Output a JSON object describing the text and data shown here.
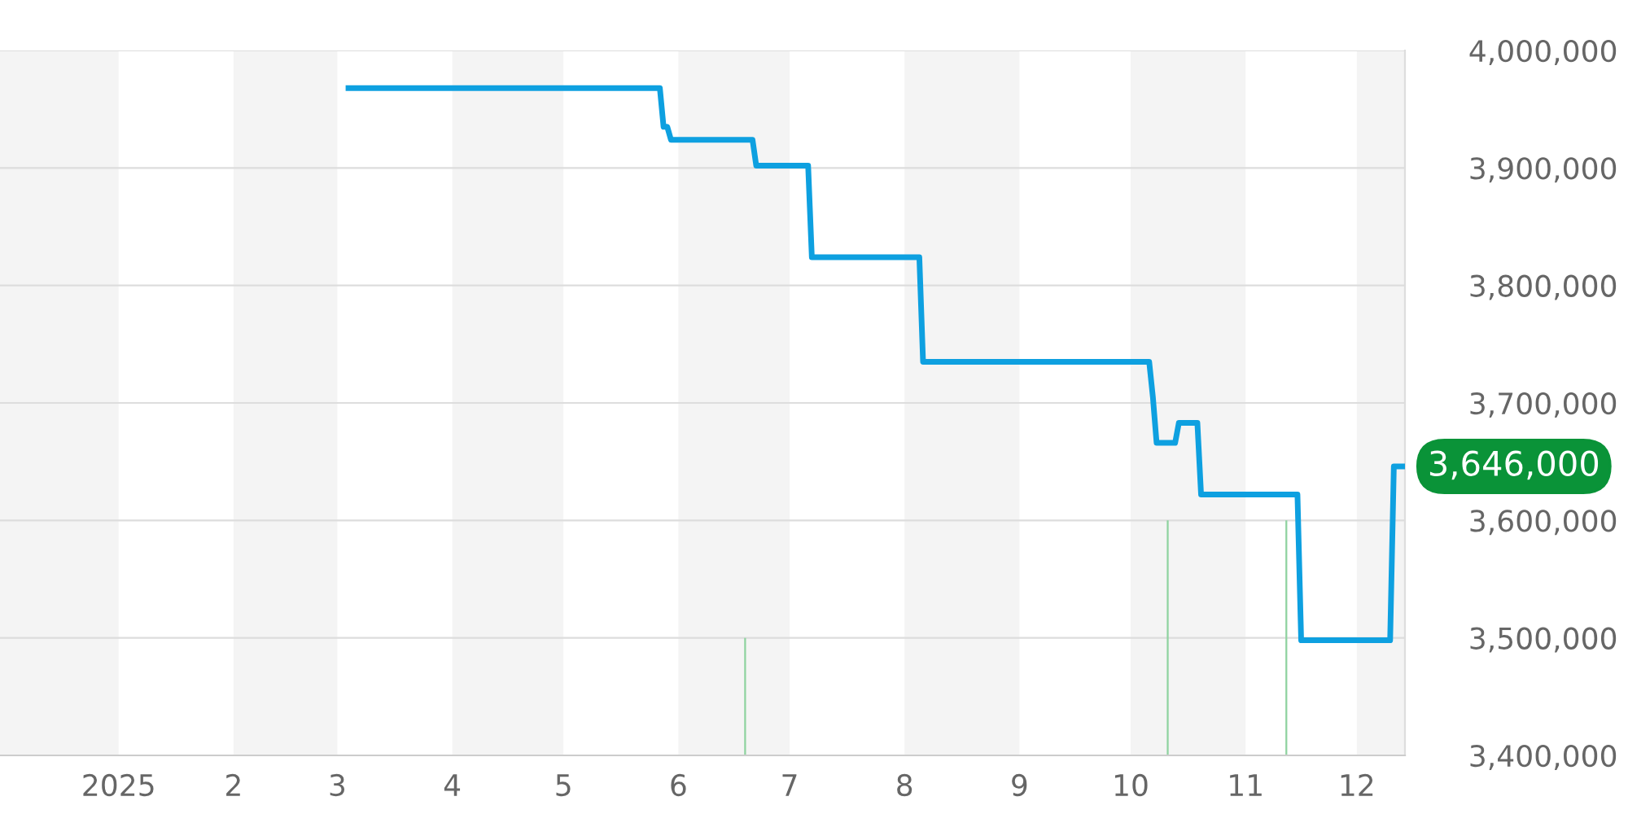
{
  "chart_data": {
    "type": "line",
    "xlim": [
      "2024-11-30",
      "2025-12-14"
    ],
    "xticks": [
      {
        "value": "2025-01-01",
        "label": "2025"
      },
      {
        "value": "2025-02-01",
        "label": "2"
      },
      {
        "value": "2025-03-01",
        "label": "3"
      },
      {
        "value": "2025-04-01",
        "label": "4"
      },
      {
        "value": "2025-05-01",
        "label": "5"
      },
      {
        "value": "2025-06-01",
        "label": "6"
      },
      {
        "value": "2025-07-01",
        "label": "7"
      },
      {
        "value": "2025-08-01",
        "label": "8"
      },
      {
        "value": "2025-09-01",
        "label": "9"
      },
      {
        "value": "2025-10-01",
        "label": "10"
      },
      {
        "value": "2025-11-01",
        "label": "11"
      },
      {
        "value": "2025-12-01",
        "label": "12"
      }
    ],
    "ylim": [
      3400000,
      4000000
    ],
    "yticks": [
      {
        "value": 3400000,
        "label": "3,400,000"
      },
      {
        "value": 3500000,
        "label": "3,500,000"
      },
      {
        "value": 3600000,
        "label": "3,600,000"
      },
      {
        "value": 3700000,
        "label": "3,700,000"
      },
      {
        "value": 3800000,
        "label": "3,800,000"
      },
      {
        "value": 3900000,
        "label": "3,900,000"
      },
      {
        "value": 4000000,
        "label": "4,000,000"
      }
    ],
    "grid": "y",
    "legend": false,
    "marker": "none",
    "line_style": "solid",
    "series": [
      {
        "color": "#0ea0e0",
        "x": [
          "2025-03-04",
          "2025-05-27",
          "2025-05-28",
          "2025-05-29",
          "2025-05-30",
          "2025-06-21",
          "2025-06-22",
          "2025-07-06",
          "2025-07-07",
          "2025-08-05",
          "2025-08-06",
          "2025-10-06",
          "2025-10-07",
          "2025-10-08",
          "2025-10-13",
          "2025-10-14",
          "2025-10-19",
          "2025-10-20",
          "2025-11-15",
          "2025-11-16",
          "2025-12-10",
          "2025-12-11",
          "2025-12-14"
        ],
        "values": [
          3968000,
          3968000,
          3935000,
          3935000,
          3924000,
          3924000,
          3902000,
          3902000,
          3824000,
          3824000,
          3735000,
          3735000,
          3705000,
          3666000,
          3666000,
          3683000,
          3683000,
          3622000,
          3622000,
          3498000,
          3498000,
          3646000,
          3646000
        ]
      },
      {
        "type": "bar",
        "color": "#8fd3a0",
        "x": [
          "2025-06-19",
          "2025-10-11",
          "2025-11-12"
        ],
        "values": [
          3500000,
          3600000,
          3600000
        ]
      }
    ],
    "bands": [
      {
        "axis": "x",
        "from": "2024-11-30",
        "to": "2025-01-01",
        "color": "#f4f4f4"
      },
      {
        "axis": "x",
        "from": "2025-02-01",
        "to": "2025-03-01",
        "color": "#f4f4f4"
      },
      {
        "axis": "x",
        "from": "2025-04-01",
        "to": "2025-05-01",
        "color": "#f4f4f4"
      },
      {
        "axis": "x",
        "from": "2025-06-01",
        "to": "2025-07-01",
        "color": "#f4f4f4"
      },
      {
        "axis": "x",
        "from": "2025-08-01",
        "to": "2025-09-01",
        "color": "#f4f4f4"
      },
      {
        "axis": "x",
        "from": "2025-10-01",
        "to": "2025-11-01",
        "color": "#f4f4f4"
      },
      {
        "axis": "x",
        "from": "2025-12-01",
        "to": "2025-12-14",
        "color": "#f4f4f4"
      }
    ],
    "annotations": [
      {
        "text": "3,646,000",
        "x": "2025-12-14",
        "y": 3646000
      }
    ]
  }
}
